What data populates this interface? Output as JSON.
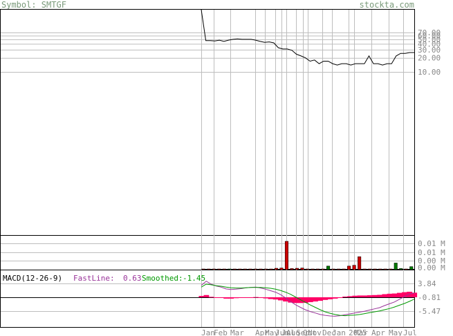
{
  "header": {
    "symbol_label": "Symbol: SMTGF",
    "site_label": "stockta.com"
  },
  "colors": {
    "header_text": "#7a9a7a",
    "grid": "#bdbdbd",
    "frame": "#000000",
    "axis_text": "#888888",
    "price_line": "#000000",
    "volume_up": "#007700",
    "volume_down": "#cc0000",
    "macd_fast": "#993399",
    "macd_smoothed": "#009900",
    "macd_hist": "#ff0066"
  },
  "chart_data": [
    {
      "type": "line",
      "panel": "price",
      "y_tick_labels": [
        "70.00",
        "60.00",
        "50.00",
        "40.00",
        "30.00",
        "20.00",
        "10.00"
      ],
      "y_tick_values": [
        70,
        60,
        50,
        40,
        30,
        20,
        10
      ],
      "scale": "log",
      "x_tick_labels": [
        "Jan",
        "Feb",
        "Mar",
        "Apr",
        "May",
        "Jun",
        "Jul",
        "Aug",
        "Sep",
        "Oct",
        "Nov",
        "Dec",
        "Jan",
        "2025",
        "Mar",
        "Apr",
        "May",
        "Jul"
      ],
      "series": [
        {
          "values": [
            2000,
            47,
            47,
            46,
            48,
            45,
            48,
            50,
            51,
            50,
            50,
            50,
            48,
            45,
            43,
            44,
            42,
            33,
            31,
            31,
            29,
            24,
            22,
            20,
            17,
            18,
            15,
            17,
            17,
            15,
            14,
            15,
            15,
            14,
            15,
            15,
            15,
            22,
            15,
            15,
            14,
            15,
            15,
            22,
            25,
            25,
            26,
            26
          ]
        }
      ]
    },
    {
      "type": "bar",
      "panel": "volume",
      "y_tick_labels": [
        "0.01 M",
        "0.01 M",
        "0.00 M",
        "0.00 M"
      ],
      "values": [
        0.0001,
        0.0001,
        0.0001,
        0.0001,
        0.0001,
        0.0002,
        0.0001,
        0.0001,
        0.0001,
        0.0001,
        0.0001,
        0.0001,
        0.0001,
        0.0001,
        0.0005,
        0.0006,
        0.0103,
        0.0004,
        0.0005,
        0.0006,
        0.0001,
        0.0001,
        0.0001,
        0.0001,
        0.0013,
        0.0001,
        0.0001,
        0.0001,
        0.0013,
        0.0016,
        0.0047,
        0.0001,
        0.0001,
        0.0001,
        0.0001,
        0.0001,
        0.0001,
        0.0024,
        0.0004,
        0.0001,
        0.0011
      ],
      "direction": [
        "d",
        "d",
        "d",
        "d",
        "d",
        "u",
        "d",
        "d",
        "d",
        "d",
        "d",
        "d",
        "d",
        "d",
        "d",
        "d",
        "d",
        "d",
        "d",
        "d",
        "d",
        "d",
        "d",
        "d",
        "u",
        "d",
        "d",
        "d",
        "d",
        "d",
        "d",
        "d",
        "d",
        "d",
        "d",
        "d",
        "d",
        "u",
        "u",
        "d",
        "u"
      ]
    },
    {
      "type": "line",
      "panel": "macd",
      "legend": {
        "title": "MACD(12-26-9)",
        "fast_label": "FastLine:",
        "fast_value": "0.63",
        "smoothed_label": "Smoothed:",
        "smoothed_value": "-1.45"
      },
      "y_tick_labels": [
        "3.84",
        "-0.81",
        "-5.47"
      ],
      "y_tick_values": [
        3.84,
        -0.81,
        -5.47
      ],
      "series": [
        {
          "name": "FastLine",
          "values": [
            3.2,
            4.6,
            3.6,
            3.0,
            2.6,
            2.0,
            1.8,
            1.9,
            2.1,
            2.4,
            2.5,
            2.6,
            2.3,
            1.9,
            1.4,
            0.9,
            0.1,
            -1.0,
            -2.2,
            -3.3,
            -4.2,
            -5.0,
            -5.6,
            -6.1,
            -6.6,
            -6.9,
            -7.1,
            -7.2,
            -7.0,
            -6.7,
            -6.4,
            -6.1,
            -5.8,
            -5.5,
            -5.1,
            -4.7,
            -4.3,
            -3.6,
            -3.0,
            -2.4,
            -1.5,
            -0.6,
            0.3,
            0.63
          ]
        },
        {
          "name": "Smoothed",
          "values": [
            2.6,
            3.6,
            3.4,
            3.1,
            2.9,
            2.6,
            2.4,
            2.3,
            2.3,
            2.4,
            2.5,
            2.5,
            2.5,
            2.4,
            2.2,
            1.9,
            1.5,
            0.9,
            0.2,
            -0.7,
            -1.6,
            -2.5,
            -3.4,
            -4.2,
            -5.0,
            -5.7,
            -6.2,
            -6.6,
            -6.9,
            -7.0,
            -6.9,
            -6.8,
            -6.6,
            -6.3,
            -6.0,
            -5.7,
            -5.4,
            -5.0,
            -4.6,
            -4.1,
            -3.5,
            -2.9,
            -2.2,
            -1.45
          ]
        }
      ]
    }
  ]
}
